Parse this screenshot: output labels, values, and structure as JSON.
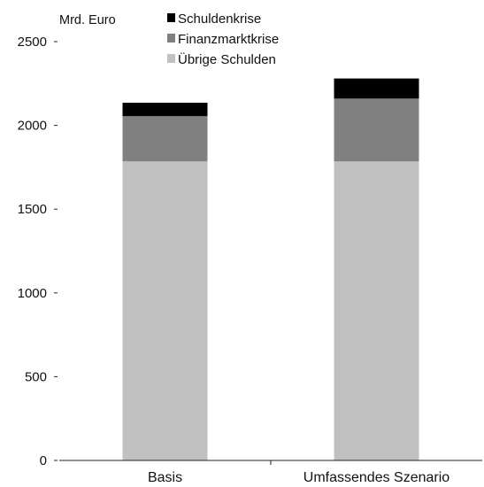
{
  "chart_data": {
    "type": "bar",
    "stacked": true,
    "ylabel": "Mrd. Euro",
    "ylim": [
      0,
      2500
    ],
    "yticks": [
      0,
      500,
      1000,
      1500,
      2000,
      2500
    ],
    "categories": [
      "Basis",
      "Umfassendes Szenario"
    ],
    "series": [
      {
        "name": "Übrige Schulden",
        "color": "#c0c0c0",
        "values": [
          1785,
          1785
        ]
      },
      {
        "name": "Finanzmarktkrise",
        "color": "#808080",
        "values": [
          270,
          375
        ]
      },
      {
        "name": "Schuldenkrise",
        "color": "#000000",
        "values": [
          80,
          120
        ]
      }
    ],
    "legend_order": [
      "Schuldenkrise",
      "Finanzmarktkrise",
      "Übrige Schulden"
    ],
    "legend_position": "top-left",
    "grid": false
  }
}
